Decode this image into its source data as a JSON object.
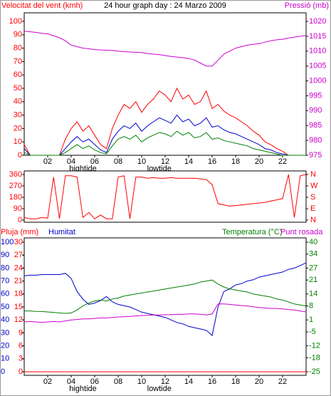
{
  "chart_data": [
    {
      "type": "line",
      "title": "24 hour graph day : 24 Marzo 2009",
      "ylabel": "Velocitat del vent (kmh)",
      "y2label": "Pressió (mb)",
      "ycolor": "#ff0000",
      "y2color": "#cc00cc",
      "x": [
        0,
        0.5,
        1,
        1.5,
        2,
        2.5,
        3,
        3.5,
        4,
        4.5,
        5,
        5.5,
        6,
        6.5,
        7,
        7.5,
        8,
        8.5,
        9,
        9.5,
        10,
        10.5,
        11,
        11.5,
        12,
        12.5,
        13,
        13.5,
        14,
        14.5,
        15,
        15.5,
        16,
        16.5,
        17,
        17.5,
        18,
        18.5,
        19,
        19.5,
        20,
        20.5,
        21,
        21.5,
        22,
        22.5,
        23,
        23.5,
        24
      ],
      "xlim": [
        0,
        24
      ],
      "xticks": [
        {
          "value": 2,
          "label": "02"
        },
        {
          "value": 4,
          "label": "04"
        },
        {
          "value": 6,
          "label": "06"
        },
        {
          "value": 8,
          "label": "08"
        },
        10,
        12,
        14,
        16,
        18,
        20,
        22
      ],
      "annotations": [
        {
          "text": "hightide",
          "x": 5
        },
        {
          "text": "lowtide",
          "x": 11.5
        }
      ],
      "ylim": [
        0,
        100
      ],
      "yticks": [
        0,
        10,
        20,
        30,
        40,
        50,
        60,
        70,
        80,
        90,
        100
      ],
      "y2lim": [
        975,
        1020
      ],
      "y2ticks": [
        975,
        980,
        985,
        990,
        995,
        1000,
        1005,
        1010,
        1015,
        1020
      ],
      "series": [
        {
          "color": "#cc00cc",
          "axis": "y2",
          "values": [
            1016.7,
            1016.5,
            1016.3,
            1016,
            1015.8,
            1015.2,
            1014.5,
            1013.5,
            1012,
            1011.5,
            1011,
            1010.8,
            1010.5,
            1010.4,
            1010.3,
            1010.2,
            1010,
            1009.8,
            1009.7,
            1009.6,
            1009.5,
            1009.2,
            1009,
            1008.8,
            1008.5,
            1008.2,
            1008,
            1007.8,
            1007.5,
            1007,
            1006,
            1005,
            1005,
            1007,
            1009,
            1010,
            1011,
            1011.5,
            1012,
            1012.3,
            1012.5,
            1013,
            1013.5,
            1013.8,
            1014,
            1014.4,
            1014.7,
            1015,
            1015.2
          ]
        },
        {
          "color": "#ff0000",
          "values": [
            8,
            0,
            0,
            0,
            0,
            0,
            0,
            12,
            20,
            25,
            18,
            22,
            15,
            8,
            5,
            20,
            30,
            38,
            35,
            40,
            32,
            38,
            42,
            48,
            45,
            40,
            50,
            42,
            45,
            38,
            40,
            48,
            35,
            38,
            33,
            30,
            28,
            25,
            22,
            18,
            15,
            10,
            8,
            5,
            3,
            0,
            0,
            0,
            0
          ]
        },
        {
          "color": "#0000cc",
          "values": [
            5,
            0,
            0,
            0,
            0,
            0,
            0,
            5,
            10,
            14,
            10,
            12,
            8,
            4,
            2,
            12,
            18,
            22,
            20,
            24,
            18,
            22,
            25,
            28,
            26,
            24,
            30,
            25,
            27,
            22,
            24,
            28,
            21,
            22,
            19,
            17,
            16,
            14,
            12,
            10,
            8,
            5,
            4,
            2,
            1,
            0,
            0,
            0,
            0
          ]
        },
        {
          "color": "#008000",
          "values": [
            2,
            0,
            0,
            0,
            0,
            0,
            0,
            2,
            5,
            8,
            5,
            7,
            4,
            2,
            1,
            7,
            12,
            14,
            12,
            15,
            10,
            13,
            15,
            17,
            16,
            14,
            18,
            15,
            17,
            13,
            14,
            17,
            12,
            13,
            11,
            10,
            9,
            8,
            7,
            5,
            4,
            3,
            2,
            1,
            0,
            0,
            0,
            0,
            0
          ]
        }
      ]
    },
    {
      "type": "line",
      "ycolor": "#ff0000",
      "y2color": "#ff0000",
      "x": [
        0,
        0.5,
        1,
        1.5,
        2,
        2.5,
        3,
        3.5,
        4,
        4.5,
        5,
        5.5,
        6,
        6.5,
        7,
        7.5,
        8,
        8.5,
        9,
        9.5,
        10,
        10.5,
        11,
        11.5,
        12,
        12.5,
        13,
        13.5,
        14,
        14.5,
        15,
        15.5,
        16,
        16.5,
        17,
        17.5,
        18,
        18.5,
        19,
        19.5,
        20,
        20.5,
        21,
        21.5,
        22,
        22.5,
        23,
        23.5,
        24
      ],
      "xlim": [
        0,
        24
      ],
      "ylim": [
        0,
        360
      ],
      "yticks": [
        0,
        90,
        180,
        270,
        360
      ],
      "y2lim": [
        0,
        360
      ],
      "y2ticks": [
        {
          "value": 0,
          "label": "N"
        },
        {
          "value": 90,
          "label": "E"
        },
        {
          "value": 180,
          "label": "S"
        },
        {
          "value": 270,
          "label": "W"
        },
        {
          "value": 360,
          "label": "N"
        }
      ],
      "series": [
        {
          "color": "#ff0000",
          "values": [
            20,
            10,
            10,
            20,
            15,
            340,
            10,
            350,
            350,
            340,
            20,
            60,
            10,
            40,
            10,
            10,
            340,
            350,
            10,
            340,
            340,
            330,
            335,
            330,
            330,
            335,
            330,
            330,
            330,
            330,
            325,
            320,
            280,
            130,
            120,
            110,
            115,
            120,
            125,
            130,
            135,
            140,
            150,
            160,
            170,
            360,
            20,
            350,
            360
          ]
        }
      ]
    },
    {
      "type": "line",
      "ycolor": "#0000cc",
      "y2color": "#008000",
      "y3color": "#ff0000",
      "x": [
        0,
        0.5,
        1,
        1.5,
        2,
        2.5,
        3,
        3.5,
        4,
        4.5,
        5,
        5.5,
        6,
        6.5,
        7,
        7.5,
        8,
        8.5,
        9,
        9.5,
        10,
        10.5,
        11,
        11.5,
        12,
        12.5,
        13,
        13.5,
        14,
        14.5,
        15,
        15.5,
        16,
        16.5,
        17,
        17.5,
        18,
        18.5,
        19,
        19.5,
        20,
        20.5,
        21,
        21.5,
        22,
        22.5,
        23,
        23.5,
        24
      ],
      "xlim": [
        0,
        24
      ],
      "xticks": [
        {
          "value": 2,
          "label": "02"
        },
        {
          "value": 4,
          "label": "04"
        },
        {
          "value": 6,
          "label": "06"
        },
        {
          "value": 8,
          "label": "08"
        },
        10,
        12,
        14,
        16,
        18,
        20,
        22
      ],
      "annotations": [
        {
          "text": "hightide",
          "x": 5
        },
        {
          "text": "lowtide",
          "x": 11.5
        }
      ],
      "ylim": [
        0,
        100
      ],
      "yticks": [
        0,
        10,
        20,
        30,
        40,
        50,
        60,
        70,
        80,
        90,
        100
      ],
      "y3lim": [
        0,
        30
      ],
      "y3ticks": [
        0,
        3,
        6,
        9,
        12,
        15,
        18,
        21,
        24,
        27,
        30
      ],
      "y2lim": [
        -25,
        40
      ],
      "y2ticks": [
        -25,
        -18,
        -12,
        -5,
        1,
        8,
        14,
        21,
        27,
        34,
        40
      ],
      "series": [
        {
          "name": "Pluja (mm)",
          "color": "#ff0000",
          "axis": "y3",
          "values": [
            0,
            0,
            0,
            0,
            0,
            0,
            0,
            0,
            0,
            0,
            0,
            0,
            0,
            0,
            0,
            0,
            0,
            0,
            0,
            0,
            0,
            0,
            0,
            0,
            0,
            0,
            0,
            0,
            0,
            0,
            0,
            0,
            0,
            0,
            0,
            0,
            0,
            0,
            0,
            0,
            0,
            0,
            0,
            0,
            0,
            0,
            0,
            0,
            0
          ]
        },
        {
          "name": "Humitat",
          "color": "#0000cc",
          "values": [
            74,
            74.5,
            74.5,
            75,
            75,
            75,
            75,
            76,
            72,
            62,
            56,
            52,
            53,
            55,
            58,
            54,
            52,
            51,
            50,
            48,
            46,
            45,
            44,
            43,
            42,
            40,
            38,
            37,
            35,
            34,
            33,
            32,
            28,
            50,
            62,
            64,
            67,
            68,
            70,
            71,
            73,
            74,
            75,
            76,
            77,
            79,
            80,
            82,
            84
          ]
        },
        {
          "name": "Temperatura (°C)",
          "color": "#008000",
          "axis": "y2",
          "values": [
            5.5,
            5.5,
            5.3,
            5.2,
            5,
            4.8,
            4.5,
            4.3,
            4.5,
            6,
            8,
            9.5,
            10.5,
            11,
            10.5,
            11.5,
            12,
            13,
            13.5,
            14,
            14.5,
            15,
            15.5,
            16,
            16.5,
            17,
            17.5,
            18,
            18.5,
            19,
            20,
            20.5,
            21,
            19,
            17.5,
            16.5,
            16,
            15.5,
            15,
            14,
            13.5,
            13,
            12.5,
            11.5,
            11,
            10,
            9,
            8.5,
            8
          ]
        },
        {
          "name": "Punt rosada",
          "color": "#cc00cc",
          "axis": "y2",
          "values": [
            0,
            0.2,
            0,
            -0.3,
            0,
            0.2,
            0,
            0.5,
            1,
            1.2,
            1.5,
            1.5,
            1.8,
            2,
            2,
            2.2,
            2.5,
            2.6,
            2.8,
            3,
            3.2,
            3.3,
            3.5,
            3.5,
            3.6,
            3.6,
            3.8,
            3.8,
            4,
            4,
            3.8,
            3.5,
            4,
            9,
            9,
            8.8,
            8.5,
            8.2,
            8,
            7.6,
            7.2,
            7,
            6.8,
            6.8,
            6.5,
            6.2,
            6,
            5.5,
            5
          ]
        }
      ]
    }
  ]
}
